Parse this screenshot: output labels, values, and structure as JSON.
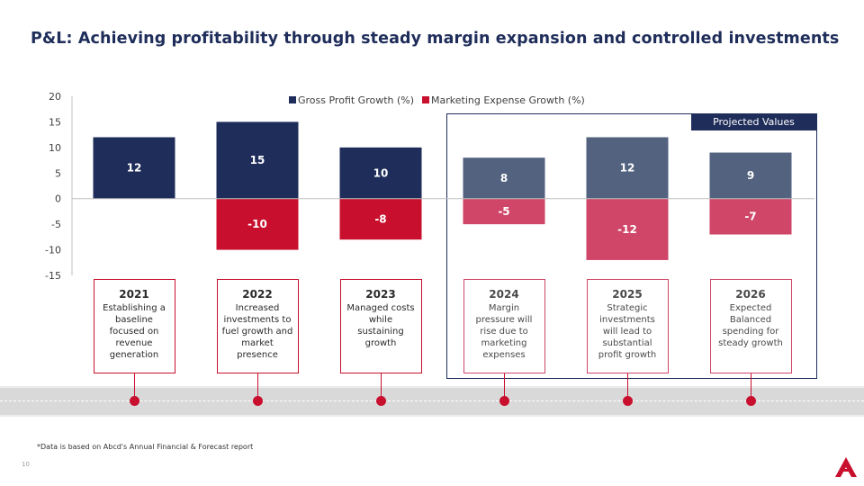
{
  "slide": {
    "title": "P&L: Achieving profitability through steady margin expansion and controlled investments",
    "projected_label": "Projected Values",
    "footnote": "*Data is based on Abcd's Annual Financial & Forecast report",
    "page_number": "10"
  },
  "colors": {
    "navy": "#1f2d5a",
    "crimson": "#c8102e",
    "navy_projected": "#52627f",
    "crimson_projected": "#cf4668"
  },
  "chart_data": {
    "type": "bar",
    "categories": [
      "2021",
      "2022",
      "2023",
      "2024",
      "2025",
      "2026"
    ],
    "series": [
      {
        "name": "Gross Profit Growth (%)",
        "values": [
          12,
          15,
          10,
          8,
          12,
          9
        ],
        "color": "#1f2d5a",
        "projected_color": "#52627f"
      },
      {
        "name": "Marketing Expense Growth (%)",
        "values": [
          null,
          -10,
          -8,
          -5,
          -12,
          -7
        ],
        "color": "#c8102e",
        "projected_color": "#cf4668"
      }
    ],
    "projected_categories": [
      "2024",
      "2025",
      "2026"
    ],
    "ylim": [
      -15,
      20
    ],
    "yticks": [
      20,
      15,
      10,
      5,
      0,
      -5,
      -10,
      -15
    ],
    "legend": "top-center",
    "grid": false
  },
  "milestones": [
    {
      "year": "2021",
      "text": "Establishing a baseline focused on revenue generation",
      "projected": false
    },
    {
      "year": "2022",
      "text": "Increased investments to fuel growth and market presence",
      "projected": false
    },
    {
      "year": "2023",
      "text": "Managed costs while sustaining growth",
      "projected": false
    },
    {
      "year": "2024",
      "text": "Margin pressure will rise due to marketing expenses",
      "projected": true
    },
    {
      "year": "2025",
      "text": "Strategic investments will lead to substantial profit growth",
      "projected": true
    },
    {
      "year": "2026",
      "text": "Expected Balanced spending for steady growth",
      "projected": true
    }
  ]
}
